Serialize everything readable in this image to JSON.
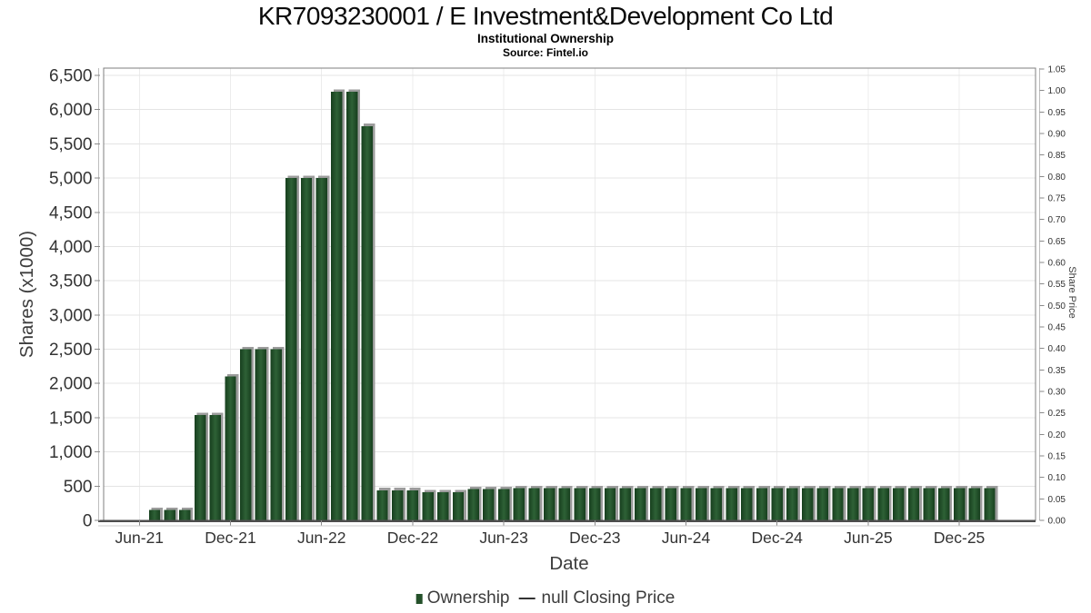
{
  "header": {
    "title": "KR7093230001 / E Investment&Development Co Ltd",
    "subtitle": "Institutional Ownership",
    "source": "Source: Fintel.io"
  },
  "colors": {
    "bar_edge": "#173f1e",
    "bar_mid": "#2e6136",
    "bar_legend": "#24512a",
    "bar_shadow": "#9c9c9c",
    "grid": "#e4e4e4",
    "grid_vertical": "#ececec",
    "spine": "#7f7f7f",
    "axis_dark": "#4d4d4d",
    "axis_light": "#bdbdbd",
    "tick": "#8a8a8a",
    "tick_text": "#333333",
    "price_line": "#333333"
  },
  "chart_data": {
    "type": "bar",
    "title": "KR7093230001 / E Investment&Development Co Ltd",
    "subtitle": "Institutional Ownership",
    "source": "Source: Fintel.io",
    "xlabel": "Date",
    "ylabel_left": "Shares (x1000)",
    "ylabel_right": "Share Price",
    "grid": true,
    "legend_position": "bottom",
    "x_tick_labels": [
      "Jun-21",
      "Dec-21",
      "Jun-22",
      "Dec-22",
      "Jun-23",
      "Dec-23",
      "Jun-24",
      "Dec-24",
      "Jun-25",
      "Dec-25"
    ],
    "y_left_lim": [
      0,
      6500
    ],
    "y_left_step": 500,
    "y_left_ticks": [
      "0",
      "500",
      "1,000",
      "1,500",
      "2,000",
      "2,500",
      "3,000",
      "3,500",
      "4,000",
      "4,500",
      "5,000",
      "5,500",
      "6,000",
      "6,500"
    ],
    "y_right_lim": [
      0,
      1.05
    ],
    "y_right_step": 0.05,
    "y_right_ticks": [
      "0.00",
      "0.05",
      "0.10",
      "0.15",
      "0.20",
      "0.25",
      "0.30",
      "0.35",
      "0.40",
      "0.45",
      "0.50",
      "0.55",
      "0.60",
      "0.65",
      "0.70",
      "0.75",
      "0.80",
      "0.85",
      "0.90",
      "0.95",
      "1.00",
      "1.05"
    ],
    "series": [
      {
        "name": "Ownership",
        "type": "bar",
        "unit": "shares x1000",
        "x": [
          "Jul-21",
          "Aug-21",
          "Sep-21",
          "Oct-21",
          "Nov-21",
          "Dec-21",
          "Jan-22",
          "Feb-22",
          "Mar-22",
          "Apr-22",
          "May-22",
          "Jun-22",
          "Jul-22",
          "Aug-22",
          "Sep-22",
          "Oct-22",
          "Nov-22",
          "Dec-22",
          "Jan-23",
          "Feb-23",
          "Mar-23",
          "Apr-23",
          "May-23",
          "Jun-23",
          "Jul-23",
          "Aug-23",
          "Sep-23",
          "Oct-23",
          "Nov-23",
          "Dec-23",
          "Jan-24",
          "Feb-24",
          "Mar-24",
          "Apr-24",
          "May-24",
          "Jun-24",
          "Jul-24",
          "Aug-24",
          "Sep-24",
          "Oct-24",
          "Nov-24",
          "Dec-24",
          "Jan-25",
          "Feb-25",
          "Mar-25",
          "Apr-25",
          "May-25",
          "Jun-25",
          "Jul-25",
          "Aug-25",
          "Sep-25",
          "Oct-25",
          "Nov-25",
          "Dec-25",
          "Jan-26",
          "Feb-26"
        ],
        "values": [
          150,
          150,
          150,
          1540,
          1540,
          2100,
          2500,
          2500,
          2500,
          5000,
          5000,
          5000,
          6260,
          6260,
          5760,
          440,
          440,
          440,
          410,
          410,
          410,
          455,
          455,
          455,
          470,
          470,
          470,
          470,
          470,
          470,
          470,
          470,
          470,
          470,
          470,
          470,
          470,
          470,
          470,
          470,
          470,
          470,
          470,
          470,
          470,
          470,
          470,
          470,
          470,
          470,
          470,
          470,
          470,
          470,
          470,
          470
        ]
      },
      {
        "name": "null Closing Price",
        "type": "line",
        "values": []
      }
    ]
  }
}
